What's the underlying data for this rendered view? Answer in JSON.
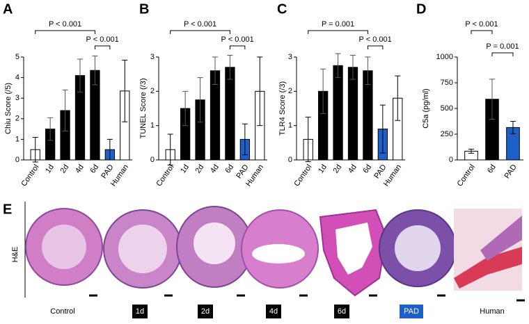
{
  "chart_data": [
    {
      "type": "bar",
      "panel": "A",
      "y_label": "Chiu Score (/5)",
      "categories": [
        "Control",
        "1d",
        "2d",
        "4d",
        "6d",
        "PAD",
        "Human"
      ],
      "values": [
        0.5,
        1.5,
        2.4,
        4.1,
        4.35,
        0.5,
        3.35
      ],
      "errors": [
        0.6,
        0.55,
        1.0,
        0.8,
        0.7,
        0.5,
        1.5
      ],
      "colors": [
        "#ffffff",
        "#000000",
        "#000000",
        "#000000",
        "#000000",
        "#1f5fc8",
        "#ffffff"
      ],
      "ylim": [
        0,
        5
      ],
      "yticks": [
        0,
        1,
        2,
        3,
        4,
        5
      ],
      "annotations": [
        {
          "label": "P < 0.001",
          "categories": [
            "Control",
            "6d"
          ]
        },
        {
          "label": "P < 0.001",
          "categories": [
            "6d",
            "PAD"
          ]
        }
      ]
    },
    {
      "type": "bar",
      "panel": "B",
      "y_label": "TUNEL Score (/3)",
      "categories": [
        "Control",
        "1d",
        "2d",
        "4d",
        "6d",
        "PAD",
        "Human"
      ],
      "values": [
        0.3,
        1.5,
        1.75,
        2.6,
        2.7,
        0.6,
        2.0
      ],
      "errors": [
        0.45,
        0.5,
        0.65,
        0.4,
        0.35,
        0.45,
        1.0
      ],
      "colors": [
        "#ffffff",
        "#000000",
        "#000000",
        "#000000",
        "#000000",
        "#1f5fc8",
        "#ffffff"
      ],
      "ylim": [
        0,
        3
      ],
      "yticks": [
        0,
        1,
        2,
        3
      ],
      "annotations": [
        {
          "label": "P < 0.001",
          "categories": [
            "Control",
            "6d"
          ]
        },
        {
          "label": "P < 0.001",
          "categories": [
            "6d",
            "PAD"
          ]
        }
      ]
    },
    {
      "type": "bar",
      "panel": "C",
      "y_label": "TLR4 Score (/3)",
      "categories": [
        "Control",
        "1d",
        "2d",
        "4d",
        "6d",
        "PAD",
        "Human"
      ],
      "values": [
        0.6,
        2.0,
        2.75,
        2.7,
        2.6,
        0.9,
        1.8
      ],
      "errors": [
        0.65,
        0.65,
        0.35,
        0.35,
        0.4,
        0.7,
        0.65
      ],
      "colors": [
        "#ffffff",
        "#000000",
        "#000000",
        "#000000",
        "#000000",
        "#1f5fc8",
        "#ffffff"
      ],
      "ylim": [
        0,
        3
      ],
      "yticks": [
        0,
        1,
        2,
        3
      ],
      "annotations": [
        {
          "label": "P = 0.001",
          "categories": [
            "Control",
            "6d"
          ]
        },
        {
          "label": "P < 0.001",
          "categories": [
            "6d",
            "PAD"
          ]
        }
      ]
    },
    {
      "type": "bar",
      "panel": "D",
      "y_label": "C5a (pg/ml)",
      "categories": [
        "Control",
        "6d",
        "PAD"
      ],
      "values": [
        85,
        590,
        315
      ],
      "errors": [
        20,
        195,
        60
      ],
      "colors": [
        "#ffffff",
        "#000000",
        "#1f5fc8"
      ],
      "ylim": [
        0,
        1000
      ],
      "yticks": [
        0,
        250,
        500,
        750,
        1000
      ],
      "annotations": [
        {
          "label": "P < 0.001",
          "categories": [
            "Control",
            "6d"
          ]
        },
        {
          "label": "P = 0.001",
          "categories": [
            "6d",
            "PAD"
          ]
        }
      ]
    }
  ],
  "panel_e": {
    "label": "E",
    "stain": "H&E",
    "samples": [
      "Control",
      "1d",
      "2d",
      "4d",
      "6d",
      "PAD",
      "Human"
    ]
  }
}
